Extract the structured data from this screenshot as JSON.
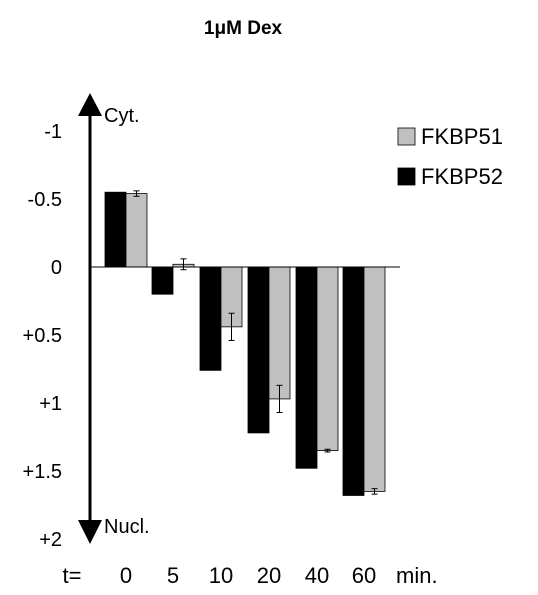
{
  "chart_data": {
    "type": "bar",
    "title": "1μM Dex",
    "x_prefix": "t=",
    "x_unit": "min.",
    "categories": [
      "0",
      "5",
      "10",
      "20",
      "40",
      "60"
    ],
    "series": [
      {
        "name": "FKBP52",
        "color": "#000000",
        "values": [
          -0.55,
          0.2,
          0.76,
          1.22,
          1.48,
          1.68
        ],
        "errors": [
          0,
          0,
          0,
          0,
          0,
          0
        ]
      },
      {
        "name": "FKBP51",
        "color": "#c0c0c0",
        "values": [
          -0.54,
          -0.02,
          0.44,
          0.97,
          1.35,
          1.65
        ],
        "errors": [
          0.02,
          0.04,
          0.1,
          0.1,
          0.01,
          0.02
        ]
      }
    ],
    "ylim": [
      -1,
      2
    ],
    "y_ticks": [
      {
        "value": -1,
        "label": "-1"
      },
      {
        "value": -0.5,
        "label": "-0.5"
      },
      {
        "value": 0,
        "label": "0"
      },
      {
        "value": 0.5,
        "label": "+0.5"
      },
      {
        "value": 1,
        "label": "+1"
      },
      {
        "value": 1.5,
        "label": "+1.5"
      },
      {
        "value": 2,
        "label": "+2"
      }
    ],
    "axis_top_label": "Cyt.",
    "axis_bottom_label": "Nucl.",
    "legend_order": [
      "FKBP51",
      "FKBP52"
    ],
    "legend_position": "top-right"
  }
}
